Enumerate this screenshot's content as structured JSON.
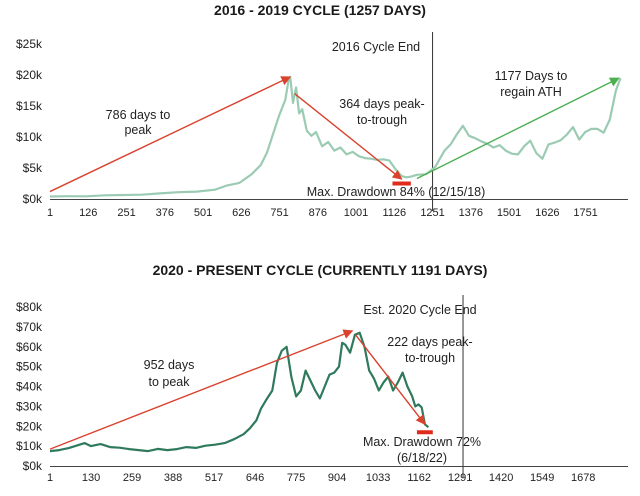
{
  "chart_data": [
    {
      "type": "line",
      "title": "2016 - 2019 CYCLE (1257 DAYS)",
      "xlim": [
        1,
        1870
      ],
      "ylim": [
        0,
        25000
      ],
      "x_ticks": [
        "1",
        "126",
        "251",
        "376",
        "501",
        "626",
        "751",
        "876",
        "1001",
        "1126",
        "1251",
        "1376",
        "1501",
        "1626",
        "1751"
      ],
      "x_tick_values": [
        1,
        126,
        251,
        376,
        501,
        626,
        751,
        876,
        1001,
        1126,
        1251,
        1376,
        1501,
        1626,
        1751
      ],
      "y_ticks": [
        "$0k",
        "$5k",
        "$10k",
        "$15k",
        "$20k",
        "$25k"
      ],
      "y_tick_values": [
        0,
        5000,
        10000,
        15000,
        20000,
        25000
      ],
      "line_color": "#9ccbb4",
      "series": [
        {
          "x": [
            1,
            60,
            120,
            180,
            240,
            300,
            360,
            420,
            480,
            540,
            580,
            620,
            660,
            690,
            710,
            730,
            750,
            770,
            780,
            786,
            795,
            805,
            815,
            825,
            840,
            855,
            870,
            890,
            910,
            930,
            950,
            970,
            990,
            1010,
            1030,
            1050,
            1070,
            1090,
            1110,
            1130,
            1150,
            1165,
            1180,
            1200,
            1230,
            1260,
            1290,
            1310,
            1330,
            1350,
            1370,
            1390,
            1410,
            1430,
            1450,
            1470,
            1490,
            1510,
            1530,
            1550,
            1570,
            1590,
            1610,
            1630,
            1650,
            1670,
            1690,
            1710,
            1730,
            1750,
            1770,
            1790,
            1810,
            1830,
            1850,
            1865
          ],
          "y": [
            400,
            450,
            430,
            600,
            650,
            700,
            900,
            1100,
            1200,
            1500,
            2200,
            2600,
            4000,
            5500,
            7500,
            10500,
            13500,
            16000,
            19000,
            19700,
            15500,
            18000,
            13800,
            14500,
            11000,
            10200,
            10800,
            8500,
            9200,
            7800,
            8300,
            7200,
            7600,
            6900,
            6600,
            6500,
            6300,
            6400,
            6200,
            4800,
            3700,
            3500,
            3600,
            3900,
            4000,
            5200,
            7800,
            8800,
            10400,
            11800,
            10200,
            9800,
            9300,
            8900,
            8300,
            8700,
            7800,
            7300,
            7200,
            8500,
            9400,
            7400,
            6500,
            8800,
            9100,
            9500,
            10400,
            11600,
            9600,
            10800,
            11300,
            11300,
            10700,
            12800,
            17500,
            19500
          ]
        }
      ],
      "annotations": {
        "cycle_end_label": "2016 Cycle End",
        "cycle_end_x": 1251,
        "peak_arrow": {
          "label_lines": [
            "786 days to",
            "peak"
          ],
          "from": [
            1,
            1200
          ],
          "to": [
            786,
            19700
          ]
        },
        "drop_arrow": {
          "label_lines": [
            "364 days peak-",
            "to-trough"
          ],
          "from": [
            800,
            17000
          ],
          "to": [
            1150,
            3200
          ]
        },
        "regain_arrow": {
          "label_lines": [
            "1177 Days to",
            "regain ATH"
          ],
          "from": [
            1200,
            3300
          ],
          "to": [
            1860,
            19500
          ]
        },
        "drawdown_label": "Max. Drawdown 84% (12/15/18)",
        "drawdown_x": [
          1120,
          1180
        ],
        "drawdown_y": 2500
      }
    },
    {
      "type": "line",
      "title": "2020 - PRESENT CYCLE (CURRENTLY 1191 DAYS)",
      "xlim": [
        1,
        1800
      ],
      "ylim": [
        0,
        80000
      ],
      "x_ticks": [
        "1",
        "130",
        "259",
        "388",
        "517",
        "646",
        "775",
        "904",
        "1033",
        "1162",
        "1291",
        "1420",
        "1549",
        "1678"
      ],
      "x_tick_values": [
        1,
        130,
        259,
        388,
        517,
        646,
        775,
        904,
        1033,
        1162,
        1291,
        1420,
        1549,
        1678
      ],
      "y_ticks": [
        "$0k",
        "$10k",
        "$20k",
        "$30k",
        "$40k",
        "$50k",
        "$60k",
        "$70k",
        "$80k"
      ],
      "y_tick_values": [
        0,
        10000,
        20000,
        30000,
        40000,
        50000,
        60000,
        70000,
        80000
      ],
      "line_color": "#2f7a5c",
      "series": [
        {
          "x": [
            1,
            30,
            60,
            90,
            110,
            130,
            160,
            190,
            220,
            250,
            280,
            310,
            340,
            370,
            400,
            430,
            460,
            490,
            520,
            550,
            580,
            610,
            630,
            650,
            665,
            680,
            700,
            715,
            730,
            745,
            760,
            775,
            790,
            805,
            820,
            835,
            850,
            865,
            880,
            895,
            910,
            920,
            930,
            945,
            960,
            975,
            990,
            1005,
            1020,
            1035,
            1050,
            1065,
            1080,
            1095,
            1110,
            1125,
            1140,
            1150,
            1160,
            1170,
            1180,
            1191
          ],
          "y": [
            7500,
            8000,
            9000,
            10500,
            11500,
            10000,
            11000,
            9500,
            9200,
            8500,
            8000,
            7500,
            8600,
            8000,
            8500,
            9500,
            9100,
            10200,
            10700,
            11500,
            13500,
            16000,
            19000,
            23000,
            29000,
            33000,
            38000,
            52000,
            58000,
            60000,
            45000,
            35000,
            38000,
            48000,
            43000,
            38000,
            34000,
            40000,
            46000,
            47000,
            50000,
            62000,
            61000,
            57000,
            66000,
            67000,
            60000,
            48000,
            44000,
            38000,
            42000,
            45000,
            38000,
            42000,
            47000,
            40000,
            35000,
            30000,
            31000,
            29500,
            21000,
            19500
          ]
        }
      ],
      "annotations": {
        "cycle_end_label": "Est. 2020 Cycle End",
        "cycle_end_x": 1300,
        "peak_arrow": {
          "label_lines": [
            "952 days",
            "to peak"
          ],
          "from": [
            1,
            8500
          ],
          "to": [
            952,
            68000
          ]
        },
        "drop_arrow": {
          "label_lines": [
            "222 days peak-",
            "to-trough"
          ],
          "from": [
            962,
            66000
          ],
          "to": [
            1180,
            21000
          ]
        },
        "drawdown_label_lines": [
          "Max. Drawdown 72%",
          "(6/18/22)"
        ],
        "drawdown_x": [
          1155,
          1205
        ],
        "drawdown_y": 17000
      }
    }
  ]
}
